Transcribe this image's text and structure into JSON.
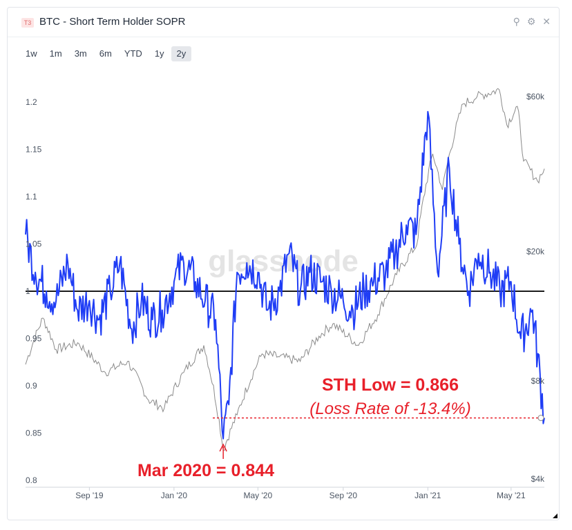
{
  "header": {
    "badge": "T3",
    "title": "BTC - Short Term Holder SOPR",
    "icons": [
      "zoom-icon",
      "gear-icon",
      "close-icon"
    ]
  },
  "tabs": [
    "1w",
    "1m",
    "3m",
    "6m",
    "YTD",
    "1y",
    "2y"
  ],
  "active_tab": "2y",
  "watermark": "glassnode",
  "colors": {
    "sopr": "#1f3df5",
    "price": "#8a8a8a",
    "baseline": "#1a1a1a",
    "annotation": "#e8202a"
  },
  "chart_data": {
    "type": "line",
    "x_ticks": [
      "Sep '19",
      "Jan '20",
      "May '20",
      "Sep '20",
      "Jan '21",
      "May '21"
    ],
    "y_left": {
      "ticks": [
        "1.2",
        "1.15",
        "1.1",
        "1.05",
        "1",
        "0.95",
        "0.9",
        "0.85",
        "0.8"
      ],
      "range": [
        0.8,
        1.2
      ]
    },
    "y_right": {
      "ticks": [
        "$60k",
        "$20k",
        "$8k",
        "$4k"
      ],
      "scale": "log"
    },
    "baseline": 1.0,
    "series": [
      {
        "role": "sopr",
        "axis": "left",
        "x": [
          "2019-06-01",
          "2019-06-15",
          "2019-07-01",
          "2019-07-15",
          "2019-08-01",
          "2019-08-15",
          "2019-09-01",
          "2019-09-15",
          "2019-10-01",
          "2019-10-15",
          "2019-11-01",
          "2019-11-15",
          "2019-12-01",
          "2019-12-15",
          "2020-01-01",
          "2020-01-15",
          "2020-02-01",
          "2020-02-15",
          "2020-03-01",
          "2020-03-12",
          "2020-03-20",
          "2020-04-01",
          "2020-04-15",
          "2020-05-01",
          "2020-05-15",
          "2020-06-01",
          "2020-06-15",
          "2020-07-01",
          "2020-07-15",
          "2020-08-01",
          "2020-08-15",
          "2020-09-01",
          "2020-09-15",
          "2020-10-01",
          "2020-10-15",
          "2020-11-01",
          "2020-11-15",
          "2020-12-01",
          "2020-12-15",
          "2021-01-01",
          "2021-01-15",
          "2021-02-01",
          "2021-02-15",
          "2021-03-01",
          "2021-03-15",
          "2021-04-01",
          "2021-04-15",
          "2021-05-01",
          "2021-05-15",
          "2021-06-01",
          "2021-06-18"
        ],
        "y": [
          1.06,
          1.02,
          1.0,
          0.99,
          1.03,
          0.98,
          0.99,
          0.97,
          1.0,
          1.03,
          0.96,
          0.99,
          0.97,
          0.98,
          1.01,
          1.03,
          1.01,
          0.99,
          0.97,
          0.844,
          0.88,
          1.02,
          1.03,
          1.02,
          0.98,
          1.0,
          1.04,
          1.0,
          1.02,
          1.01,
          1.0,
          0.99,
          0.98,
          1.0,
          1.01,
          1.02,
          1.04,
          1.07,
          1.06,
          1.19,
          1.02,
          1.13,
          1.05,
          1.0,
          1.04,
          1.02,
          1.0,
          1.01,
          0.95,
          0.98,
          0.866
        ]
      },
      {
        "role": "price",
        "axis": "right",
        "x": [
          "2019-06-01",
          "2019-06-26",
          "2019-07-15",
          "2019-08-15",
          "2019-09-24",
          "2019-10-26",
          "2019-11-25",
          "2019-12-18",
          "2020-01-15",
          "2020-02-13",
          "2020-03-12",
          "2020-04-01",
          "2020-05-07",
          "2020-06-01",
          "2020-07-01",
          "2020-07-28",
          "2020-08-17",
          "2020-09-23",
          "2020-10-21",
          "2020-11-17",
          "2020-12-16",
          "2021-01-08",
          "2021-01-22",
          "2021-02-21",
          "2021-03-13",
          "2021-04-14",
          "2021-04-25",
          "2021-05-10",
          "2021-05-19",
          "2021-06-08",
          "2021-06-18"
        ],
        "y": [
          9000,
          12500,
          10000,
          10500,
          8500,
          9200,
          7000,
          6600,
          8500,
          10300,
          4900,
          6300,
          9700,
          9500,
          9200,
          11000,
          12000,
          10300,
          12800,
          17000,
          21000,
          40000,
          31000,
          57000,
          60000,
          63000,
          49000,
          56000,
          38000,
          33000,
          36000
        ]
      }
    ],
    "annotations": [
      {
        "text": "STH Low = 0.866",
        "sub": "(Loss Rate of -13.4%)",
        "value": 0.866
      },
      {
        "text": "Mar 2020 = 0.844",
        "value": 0.844
      }
    ]
  }
}
